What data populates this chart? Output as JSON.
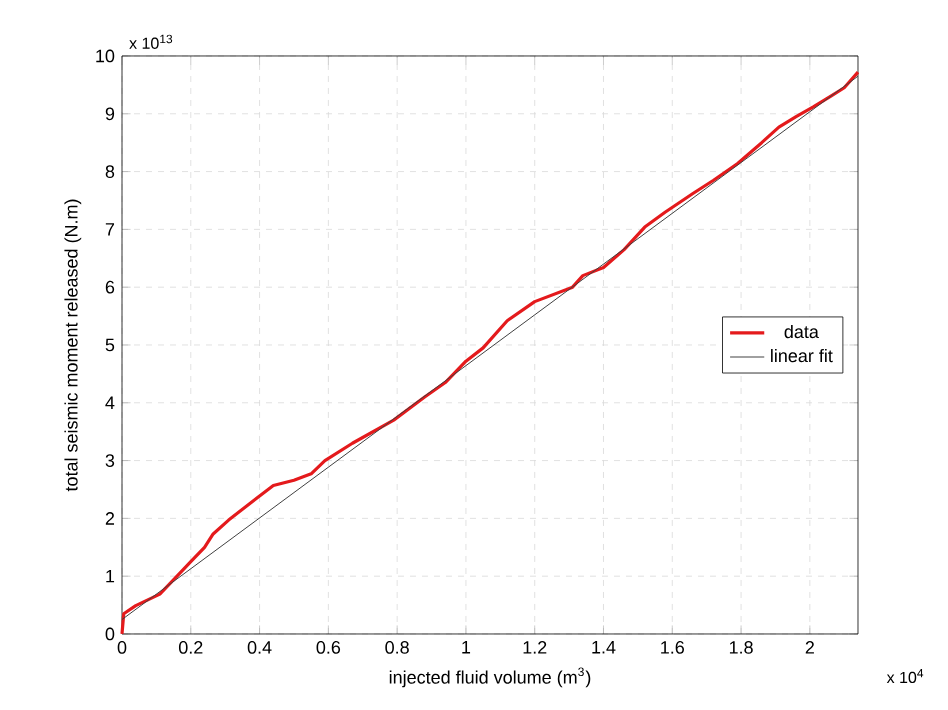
{
  "chart_data": {
    "type": "line",
    "xlabel": "injected fluid volume (m$^{3}$)",
    "ylabel": "total seismic moment released (N.m)",
    "annotations": [
      "x 10$^{13}$",
      "x 10$^{4}$"
    ],
    "xlim": [
      0,
      2.14
    ],
    "ylim": [
      0,
      10
    ],
    "xticks": [
      0,
      0.2,
      0.4,
      0.6,
      0.8,
      1,
      1.2,
      1.4,
      1.6,
      1.8,
      2
    ],
    "yticks": [
      0,
      1,
      2,
      3,
      4,
      5,
      6,
      7,
      8,
      9,
      10
    ],
    "grid": true,
    "legend": "right",
    "series": [
      {
        "name": "data",
        "color": "#e41a1c",
        "x": [
          0,
          0.005,
          0.04,
          0.11,
          0.16,
          0.2,
          0.24,
          0.265,
          0.31,
          0.37,
          0.44,
          0.5,
          0.55,
          0.59,
          0.67,
          0.79,
          0.88,
          0.94,
          1.0,
          1.05,
          1.12,
          1.2,
          1.31,
          1.34,
          1.4,
          1.46,
          1.52,
          1.58,
          1.66,
          1.72,
          1.79,
          1.86,
          1.91,
          1.96,
          2.01,
          2.06,
          2.1,
          2.14
        ],
        "values": [
          0,
          0.35,
          0.49,
          0.69,
          1.0,
          1.25,
          1.5,
          1.73,
          1.97,
          2.25,
          2.57,
          2.66,
          2.77,
          3.0,
          3.3,
          3.7,
          4.1,
          4.35,
          4.72,
          4.95,
          5.42,
          5.75,
          6.0,
          6.2,
          6.34,
          6.65,
          7.04,
          7.3,
          7.62,
          7.85,
          8.14,
          8.5,
          8.77,
          8.95,
          9.12,
          9.3,
          9.45,
          9.72
        ]
      },
      {
        "name": "linear fit",
        "color": "#404040",
        "x": [
          0,
          2.14
        ],
        "values": [
          0.25,
          9.65
        ]
      }
    ]
  }
}
